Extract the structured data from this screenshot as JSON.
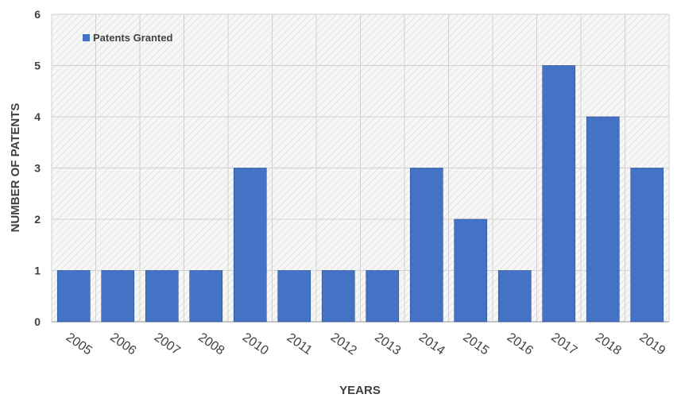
{
  "chart_data": {
    "type": "bar",
    "categories": [
      "2005",
      "2006",
      "2007",
      "2008",
      "2010",
      "2011",
      "2012",
      "2013",
      "2014",
      "2015",
      "2016",
      "2017",
      "2018",
      "2019"
    ],
    "series": [
      {
        "name": "Patents Granted",
        "values": [
          1,
          1,
          1,
          1,
          3,
          1,
          1,
          1,
          3,
          2,
          1,
          5,
          4,
          3
        ]
      }
    ],
    "title": "",
    "xlabel": "YEARS",
    "ylabel": "NUMBER OF PATENTS",
    "ylim": [
      0,
      6
    ],
    "yticks": [
      0,
      1,
      2,
      3,
      4,
      5,
      6
    ],
    "grid": true,
    "legend_position": "top-left",
    "bar_color": "#4472C4"
  }
}
